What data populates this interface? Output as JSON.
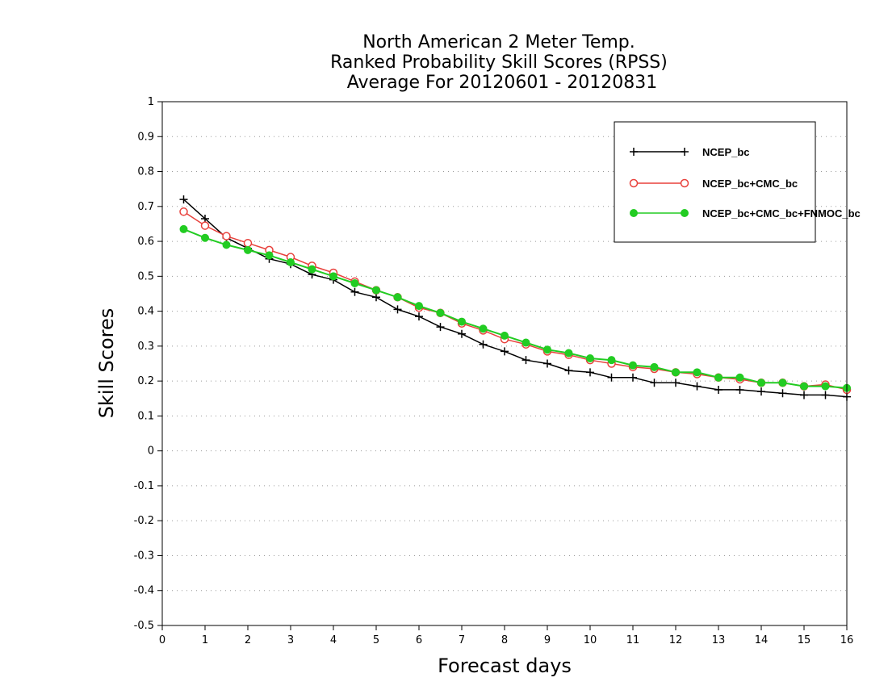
{
  "chart_data": {
    "type": "line",
    "title": [
      "North American 2 Meter Temp.",
      "Ranked Probability Skill Scores (RPSS)",
      "Average For 20120601 - 20120831"
    ],
    "xlabel": "Forecast days",
    "ylabel": "Skill Scores",
    "xlim": [
      0,
      16
    ],
    "ylim": [
      -0.5,
      1
    ],
    "xticks": [
      "0",
      "1",
      "2",
      "3",
      "4",
      "5",
      "6",
      "7",
      "8",
      "9",
      "10",
      "11",
      "12",
      "13",
      "14",
      "15",
      "16"
    ],
    "yticks": [
      "1",
      "0.9",
      "0.8",
      "0.7",
      "0.6",
      "0.5",
      "0.4",
      "0.3",
      "0.2",
      "0.1",
      "0",
      "-0.1",
      "-0.2",
      "-0.3",
      "-0.4",
      "-0.5"
    ],
    "grid": "horizontal dotted",
    "legend_position": "top-right",
    "x": [
      0.5,
      1,
      1.5,
      2,
      2.5,
      3,
      3.5,
      4,
      4.5,
      5,
      5.5,
      6,
      6.5,
      7,
      7.5,
      8,
      8.5,
      9,
      9.5,
      10,
      10.5,
      11,
      11.5,
      12,
      12.5,
      13,
      13.5,
      14,
      14.5,
      15,
      15.5,
      16
    ],
    "series": [
      {
        "name": "NCEP_bc",
        "color": "#000000",
        "marker": "plus",
        "values": [
          0.72,
          0.665,
          0.61,
          0.58,
          0.55,
          0.535,
          0.505,
          0.49,
          0.455,
          0.44,
          0.405,
          0.385,
          0.355,
          0.335,
          0.305,
          0.285,
          0.26,
          0.25,
          0.23,
          0.225,
          0.21,
          0.21,
          0.195,
          0.195,
          0.185,
          0.175,
          0.175,
          0.17,
          0.165,
          0.16,
          0.16,
          0.155
        ]
      },
      {
        "name": "NCEP_bc+CMC_bc",
        "color": "#e8413c",
        "marker": "open-circle",
        "values": [
          0.685,
          0.645,
          0.615,
          0.595,
          0.575,
          0.555,
          0.53,
          0.51,
          0.485,
          0.46,
          0.44,
          0.41,
          0.395,
          0.365,
          0.345,
          0.32,
          0.305,
          0.285,
          0.275,
          0.26,
          0.25,
          0.24,
          0.235,
          0.225,
          0.22,
          0.21,
          0.205,
          0.195,
          0.195,
          0.185,
          0.19,
          0.175
        ]
      },
      {
        "name": "NCEP_bc+CMC_bc+FNMOC_bc",
        "color": "#22cc22",
        "marker": "filled-circle",
        "values": [
          0.635,
          0.61,
          0.59,
          0.575,
          0.56,
          0.54,
          0.52,
          0.5,
          0.48,
          0.46,
          0.44,
          0.415,
          0.395,
          0.37,
          0.35,
          0.33,
          0.31,
          0.29,
          0.28,
          0.265,
          0.26,
          0.245,
          0.24,
          0.225,
          0.225,
          0.21,
          0.21,
          0.195,
          0.195,
          0.185,
          0.185,
          0.18
        ]
      }
    ]
  }
}
